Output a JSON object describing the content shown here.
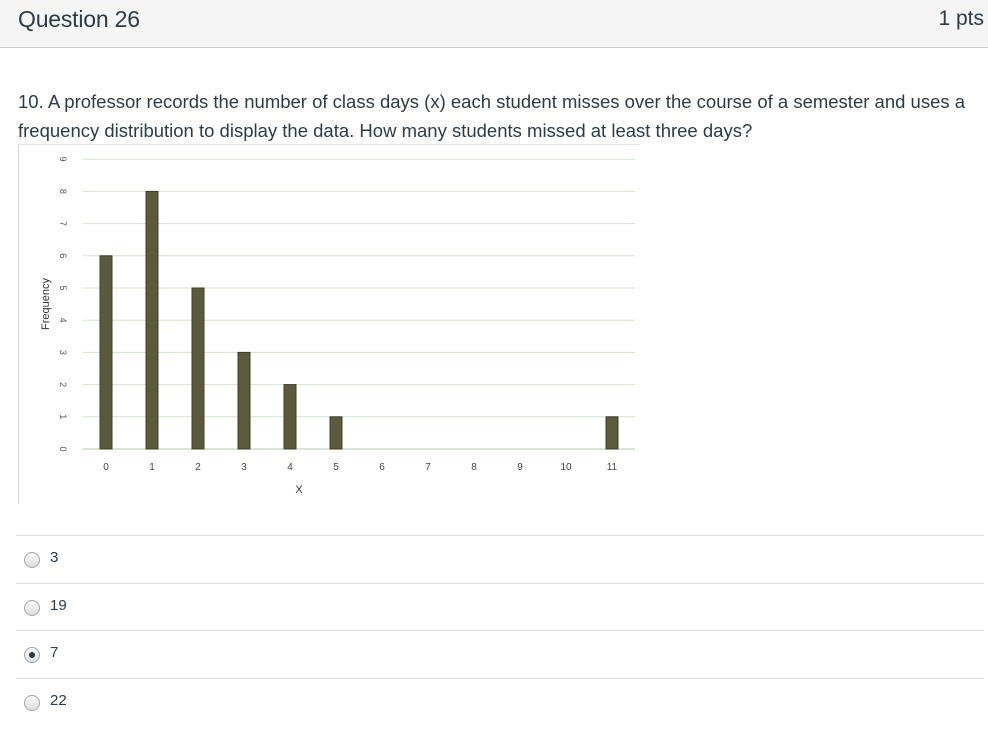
{
  "question": {
    "title": "Question 26",
    "points": "1 pts",
    "text": "10. A professor records the number of class days (x) each student misses over the course of a semester and uses a frequency distribution to display the data. How many students missed at least three days?"
  },
  "answers": [
    {
      "label": "3",
      "selected": false
    },
    {
      "label": "19",
      "selected": false
    },
    {
      "label": "7",
      "selected": true
    },
    {
      "label": "22",
      "selected": false
    }
  ],
  "chart_data": {
    "type": "bar",
    "categories": [
      "0",
      "1",
      "2",
      "3",
      "4",
      "5",
      "6",
      "7",
      "8",
      "9",
      "10",
      "11"
    ],
    "values": [
      6,
      8,
      5,
      3,
      2,
      1,
      0,
      0,
      0,
      0,
      0,
      1
    ],
    "y_ticks": [
      "0",
      "1",
      "2",
      "3",
      "4",
      "5",
      "6",
      "7",
      "8",
      "9"
    ],
    "xlabel": "X",
    "ylabel": "Frequency",
    "ylim": [
      0,
      9
    ],
    "grid": true,
    "bar_color": "#5c5a3c",
    "grid_color": "#d6e4d2"
  }
}
